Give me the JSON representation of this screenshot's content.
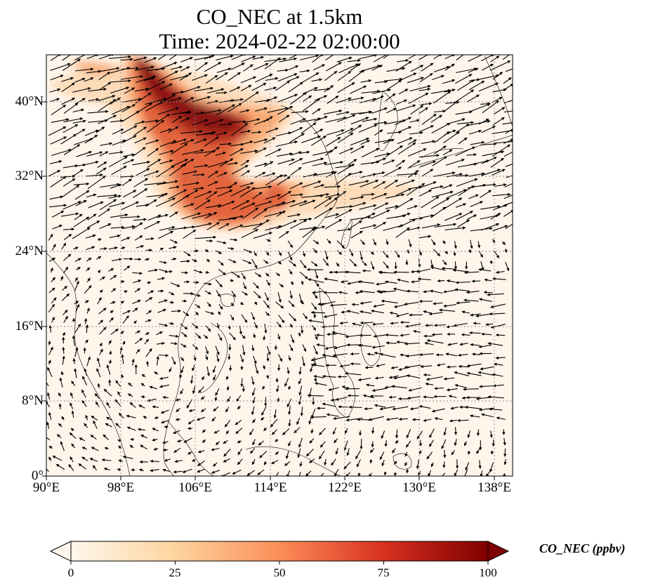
{
  "title": {
    "line1": "CO_NEC at 1.5km",
    "line2": "Time: 2024-02-22 02:00:00"
  },
  "map": {
    "lon_range": [
      90,
      140
    ],
    "lat_range": [
      0,
      45
    ],
    "x_ticks": [
      "90°E",
      "98°E",
      "106°E",
      "114°E",
      "122°E",
      "130°E",
      "138°E"
    ],
    "y_ticks": [
      "0°",
      "8°N",
      "16°N",
      "24°N",
      "32°N",
      "40°N"
    ],
    "gridlines": true,
    "background_color": "#fff5eb",
    "plume_colors": [
      "#fdd9b4",
      "#f9a46a",
      "#e0542a",
      "#b31d0a",
      "#7f0000"
    ]
  },
  "colorbar": {
    "label": "CO_NEC (ppbv)",
    "min": 0,
    "max": 100,
    "ticks": [
      "0",
      "25",
      "50",
      "75",
      "100"
    ],
    "colormap": "OrRd",
    "extend": "both"
  }
}
